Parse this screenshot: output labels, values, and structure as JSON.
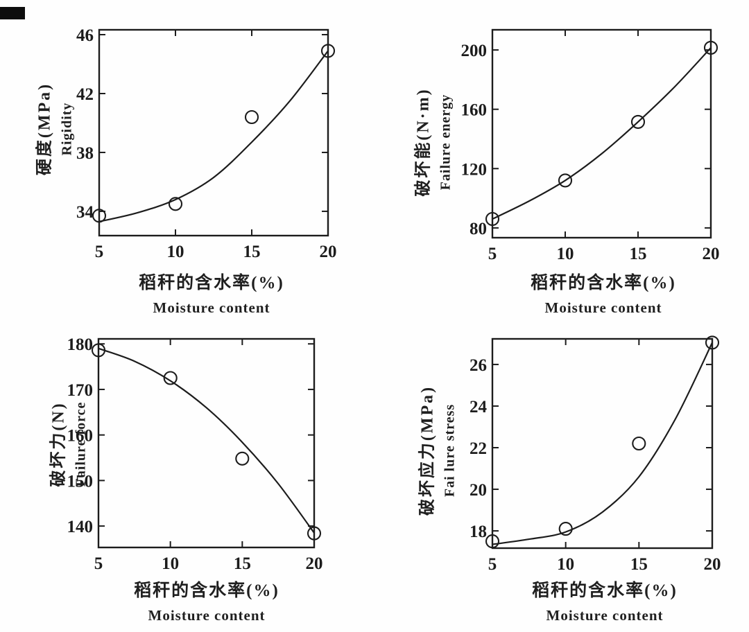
{
  "page": {
    "background": "#fefefe",
    "ink_color": "#1c1c1c",
    "scan_artifact": "black-mark-top-left"
  },
  "chart_data": [
    {
      "id": "rigidity",
      "type": "scatter",
      "ylabel_cn": "硬度(MPa)",
      "ylabel_en": "Rigidity",
      "xlabel_cn": "稻秆的含水率(%)",
      "xlabel_en": "Moisture content",
      "xlim": [
        5,
        20
      ],
      "ylim": [
        32.35,
        46.33
      ],
      "xticks": [
        5,
        10,
        15,
        20
      ],
      "yticks": [
        34,
        38,
        42,
        46
      ],
      "grid": false,
      "points": [
        [
          5,
          33.7
        ],
        [
          10,
          34.5
        ],
        [
          15,
          40.4
        ],
        [
          20,
          44.9
        ]
      ],
      "curve": [
        [
          5,
          33.3
        ],
        [
          7.5,
          33.9
        ],
        [
          10,
          34.8
        ],
        [
          12.5,
          36.3
        ],
        [
          15,
          38.7
        ],
        [
          17.5,
          41.5
        ],
        [
          20,
          44.9
        ]
      ]
    },
    {
      "id": "failure-energy",
      "type": "scatter",
      "ylabel_cn": "破坏能(N·m)",
      "ylabel_en": "Failure energy",
      "xlabel_cn": "稻秆的含水率(%)",
      "xlabel_en": "Moisture content",
      "xlim": [
        5,
        20
      ],
      "ylim": [
        73.4,
        213.6
      ],
      "xticks": [
        5,
        10,
        15,
        20
      ],
      "yticks": [
        80,
        120,
        160,
        200
      ],
      "grid": false,
      "points": [
        [
          5,
          86
        ],
        [
          10,
          112
        ],
        [
          15,
          151.5
        ],
        [
          20,
          201.5
        ]
      ],
      "curve": [
        [
          5,
          86
        ],
        [
          7.5,
          98
        ],
        [
          10,
          112
        ],
        [
          12.5,
          130
        ],
        [
          15,
          151.5
        ],
        [
          17.5,
          175
        ],
        [
          20,
          201.5
        ]
      ]
    },
    {
      "id": "failure-force",
      "type": "scatter",
      "ylabel_cn": "破坏力(N)",
      "ylabel_en": "Failure force",
      "xlabel_cn": "稻秆的含水率(%)",
      "xlabel_en": "Moisture content",
      "xlim": [
        5,
        20
      ],
      "ylim": [
        135.3,
        181.1
      ],
      "xticks": [
        5,
        10,
        15,
        20
      ],
      "yticks": [
        140,
        150,
        160,
        170,
        180
      ],
      "grid": false,
      "points": [
        [
          5,
          178.6
        ],
        [
          10,
          172.5
        ],
        [
          15,
          154.8
        ],
        [
          20,
          138.4
        ]
      ],
      "curve": [
        [
          5,
          179.0
        ],
        [
          7.5,
          176.2
        ],
        [
          10,
          171.9
        ],
        [
          12.5,
          166.0
        ],
        [
          15,
          158.4
        ],
        [
          17.5,
          149.3
        ],
        [
          20,
          138.5
        ]
      ]
    },
    {
      "id": "failure-stress",
      "type": "scatter",
      "ylabel_cn": "破坏应力(MPa)",
      "ylabel_en": "Fai lure stress",
      "xlabel_cn": "稻秆的含水率(%)",
      "xlabel_en": "Moisture content",
      "xlim": [
        5,
        20
      ],
      "ylim": [
        17.17,
        27.23
      ],
      "xticks": [
        5,
        10,
        15,
        20
      ],
      "yticks": [
        18,
        20,
        22,
        24,
        26
      ],
      "grid": false,
      "points": [
        [
          5,
          17.5
        ],
        [
          10,
          18.1
        ],
        [
          15,
          22.2
        ],
        [
          20,
          27.05
        ]
      ],
      "curve": [
        [
          5,
          17.35
        ],
        [
          7.5,
          17.6
        ],
        [
          10,
          17.95
        ],
        [
          12.5,
          18.9
        ],
        [
          15,
          20.6
        ],
        [
          17.5,
          23.4
        ],
        [
          20,
          27.05
        ]
      ]
    }
  ]
}
